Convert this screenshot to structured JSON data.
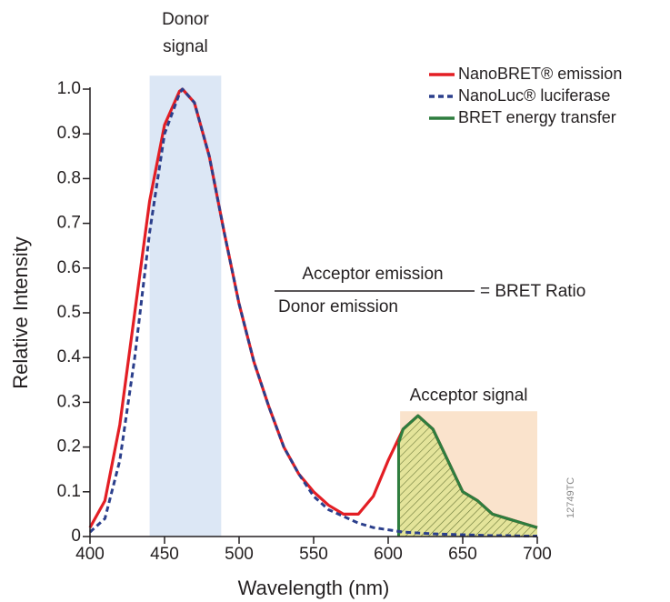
{
  "chart_data": {
    "type": "line",
    "xlabel": "Wavelength (nm)",
    "ylabel": "Relative Intensity",
    "xlim": [
      400,
      700
    ],
    "ylim": [
      0,
      1
    ],
    "xticks": [
      400,
      450,
      500,
      550,
      600,
      650,
      700
    ],
    "yticks": [
      0,
      0.1,
      0.2,
      0.3,
      0.4,
      0.5,
      0.6,
      0.7,
      0.8,
      0.9,
      {
        "value": 1,
        "label": "1.0"
      }
    ],
    "legend": "upper right",
    "bands": [
      {
        "label": [
          "Donor",
          "signal"
        ],
        "x": [
          440,
          488
        ],
        "y": [
          0,
          1.03
        ],
        "color": "#dce7f5"
      },
      {
        "label": [
          "Acceptor signal"
        ],
        "x": [
          608,
          700
        ],
        "y": [
          0,
          0.28
        ],
        "color": "#fae3cc"
      }
    ],
    "series": [
      {
        "name": "NanoBRET® emission",
        "color": "#e31e24",
        "dash": false,
        "x": [
          400,
          410,
          420,
          430,
          440,
          450,
          460,
          462,
          470,
          480,
          490,
          500,
          510,
          520,
          530,
          540,
          550,
          560,
          570,
          580,
          590,
          600,
          610,
          620,
          630,
          640,
          650,
          660,
          670,
          680,
          690,
          700
        ],
        "values": [
          0.02,
          0.08,
          0.25,
          0.5,
          0.75,
          0.92,
          0.995,
          1.0,
          0.97,
          0.85,
          0.68,
          0.52,
          0.39,
          0.29,
          0.2,
          0.14,
          0.1,
          0.07,
          0.05,
          0.05,
          0.09,
          0.17,
          0.24,
          0.27,
          0.24,
          0.17,
          0.1,
          0.08,
          0.05,
          0.04,
          0.03,
          0.02
        ]
      },
      {
        "name": "NanoLuc® luciferase",
        "color": "#2b3f8c",
        "dash": true,
        "x": [
          400,
          410,
          420,
          430,
          440,
          450,
          460,
          462,
          470,
          480,
          490,
          500,
          510,
          520,
          530,
          540,
          550,
          560,
          570,
          580,
          590,
          600,
          610,
          620,
          630,
          640,
          650,
          660,
          670,
          680,
          690,
          700
        ],
        "values": [
          0.01,
          0.04,
          0.17,
          0.4,
          0.68,
          0.9,
          0.99,
          1.0,
          0.97,
          0.85,
          0.68,
          0.52,
          0.39,
          0.29,
          0.2,
          0.14,
          0.09,
          0.06,
          0.045,
          0.03,
          0.02,
          0.015,
          0.01,
          0.008,
          0.006,
          0.005,
          0.004,
          0.003,
          0.002,
          0.002,
          0.001,
          0.001
        ]
      },
      {
        "name": "BRET energy transfer",
        "color": "#2e7d3e",
        "dash": false,
        "hatched": true,
        "x": [
          607,
          610,
          620,
          630,
          640,
          650,
          660,
          670,
          680,
          690,
          700
        ],
        "values": [
          0.21,
          0.24,
          0.27,
          0.24,
          0.17,
          0.1,
          0.08,
          0.05,
          0.04,
          0.03,
          0.02
        ]
      }
    ],
    "ratio": {
      "numerator": "Acceptor emission",
      "denominator": "Donor emission",
      "result": "= BRET Ratio"
    },
    "code": "12749TC"
  }
}
